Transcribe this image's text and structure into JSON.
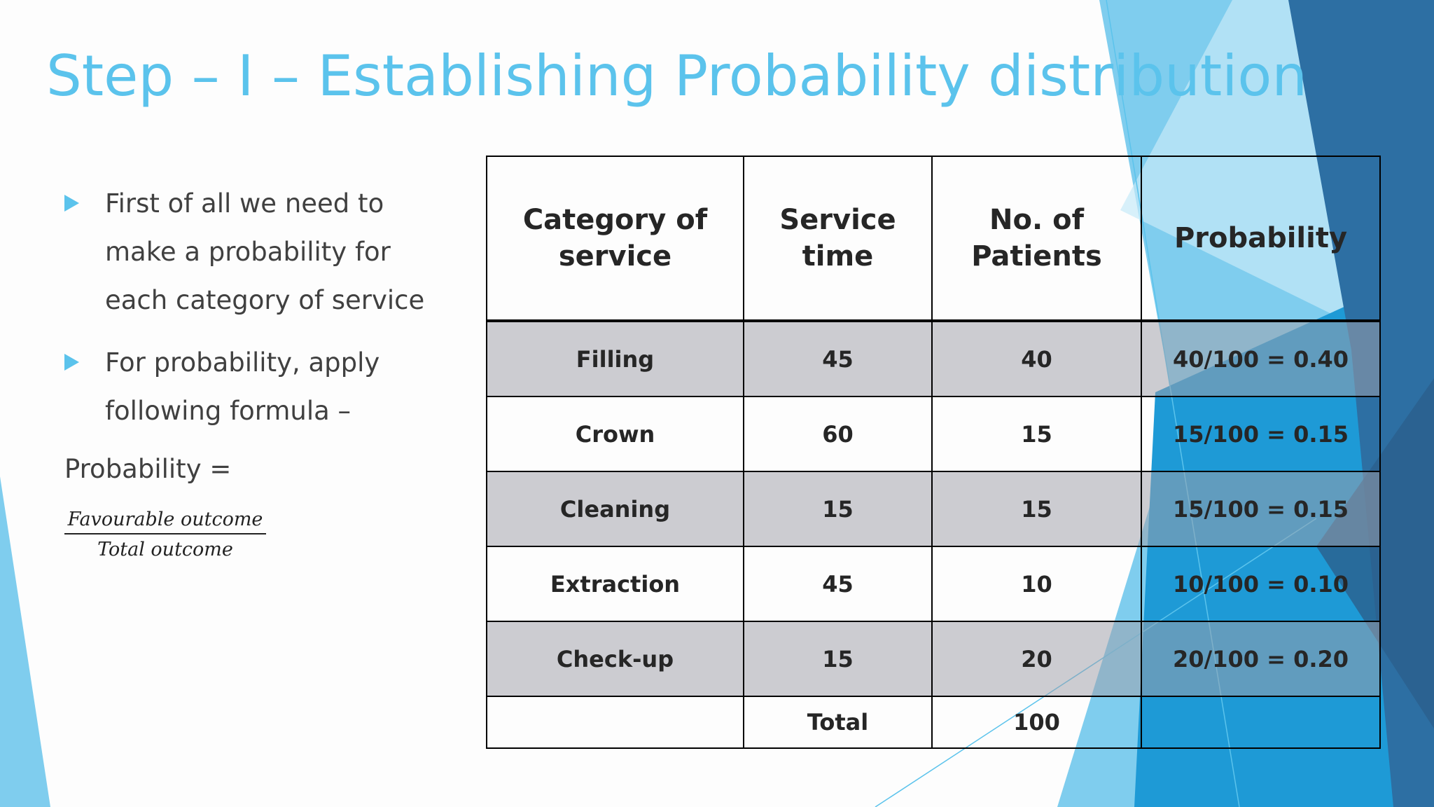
{
  "title": "Step – I – Establishing Probability distribution",
  "bullets": [
    "First of all we need to make a probability for each category of service",
    "For probability, apply following formula –"
  ],
  "formula": {
    "label": "Probability =",
    "numerator": "Favourable outcome",
    "denominator": "Total outcome"
  },
  "table": {
    "headers": [
      "Category of service",
      "Service time",
      "No. of Patients",
      "Probability"
    ],
    "rows": [
      [
        "Filling",
        "45",
        "40",
        "40/100 = 0.40"
      ],
      [
        "Crown",
        "60",
        "15",
        "15/100 = 0.15"
      ],
      [
        "Cleaning",
        "15",
        "15",
        "15/100 = 0.15"
      ],
      [
        "Extraction",
        "45",
        "10",
        "10/100 = 0.10"
      ],
      [
        "Check-up",
        "15",
        "20",
        "20/100 = 0.20"
      ]
    ],
    "total": [
      "",
      "Total",
      "100",
      ""
    ]
  },
  "colors": {
    "accent": "#5bc3ec",
    "text": "#404040",
    "shade": "#c8c8cc",
    "deco_dark": "#2d6fa3",
    "deco_mid": "#1e9ad6",
    "deco_light": "#7fcdee"
  }
}
